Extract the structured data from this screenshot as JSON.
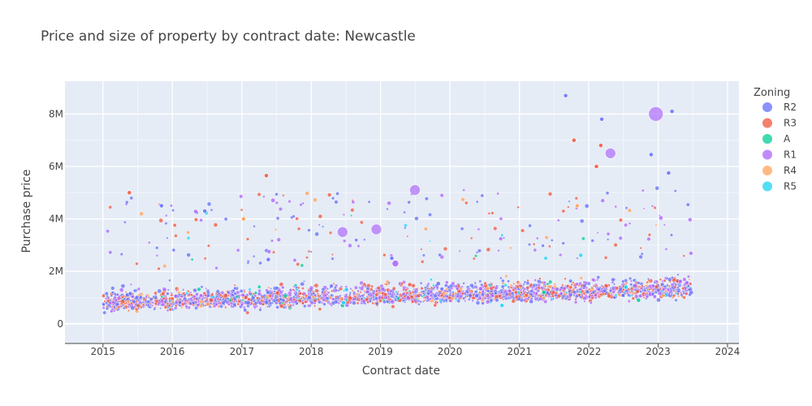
{
  "chart_data": {
    "type": "scatter",
    "title": "Price and size of property by contract date: Newcastle",
    "xlabel": "Contract date",
    "ylabel": "Purchase price",
    "x_range": [
      "2014-06-15",
      "2024-03-01"
    ],
    "x_ticks": [
      "2015",
      "2016",
      "2017",
      "2018",
      "2019",
      "2020",
      "2021",
      "2022",
      "2023",
      "2024"
    ],
    "ylim": [
      -750000,
      9250000
    ],
    "y_ticks": [
      {
        "value": 0,
        "label": "0"
      },
      {
        "value": 2000000,
        "label": "2M"
      },
      {
        "value": 4000000,
        "label": "4M"
      },
      {
        "value": 6000000,
        "label": "6M"
      },
      {
        "value": 8000000,
        "label": "8M"
      }
    ],
    "grid": true,
    "background": "#E5ECF6",
    "legend": {
      "title": "Zoning",
      "placement": "right",
      "entries": [
        {
          "name": "R2",
          "color": "#636EFA"
        },
        {
          "name": "R3",
          "color": "#EF553B"
        },
        {
          "name": "A",
          "color": "#00CC96"
        },
        {
          "name": "R1",
          "color": "#AB63FA"
        },
        {
          "name": "R4",
          "color": "#FFA15A"
        },
        {
          "name": "R5",
          "color": "#19D3F3"
        }
      ]
    },
    "series": [
      {
        "name": "R2",
        "color": "#636EFA",
        "points": [
          {
            "x": "2015-05-10",
            "y": 1100000
          },
          {
            "x": "2015-05-25",
            "y": 1150000
          },
          {
            "x": "2015-11-05",
            "y": 4500000
          },
          {
            "x": "2016-06-20",
            "y": 4300000
          },
          {
            "x": "2017-05-20",
            "y": 2450000
          },
          {
            "x": "2019-03-01",
            "y": 2500000
          },
          {
            "x": "2021-09-01",
            "y": 8700000
          },
          {
            "x": "2022-03-10",
            "y": 7800000
          },
          {
            "x": "2022-11-25",
            "y": 6450000
          },
          {
            "x": "2023-02-25",
            "y": 5750000
          },
          {
            "x": "2023-03-15",
            "y": 8100000
          }
        ]
      },
      {
        "name": "R3",
        "color": "#EF553B",
        "points": [
          {
            "x": "2015-05-20",
            "y": 5000000
          },
          {
            "x": "2017-05-10",
            "y": 5650000
          },
          {
            "x": "2021-10-15",
            "y": 7000000
          },
          {
            "x": "2022-02-10",
            "y": 6000000
          },
          {
            "x": "2022-03-05",
            "y": 6800000
          }
        ]
      },
      {
        "name": "A",
        "color": "#00CC96",
        "points": [
          {
            "x": "2018-06-15",
            "y": 700000
          },
          {
            "x": "2021-05-10",
            "y": 1200000
          },
          {
            "x": "2022-09-20",
            "y": 900000
          }
        ]
      },
      {
        "name": "R1",
        "color": "#AB63FA",
        "points": [
          {
            "x": "2018-06-15",
            "y": 3500000
          },
          {
            "x": "2018-12-10",
            "y": 3600000
          },
          {
            "x": "2019-03-20",
            "y": 2300000
          },
          {
            "x": "2019-07-01",
            "y": 5100000
          },
          {
            "x": "2022-04-25",
            "y": 6500000
          },
          {
            "x": "2022-12-20",
            "y": 8000000
          }
        ]
      },
      {
        "name": "R4",
        "color": "#FFA15A",
        "points": [
          {
            "x": "2017-01-10",
            "y": 4000000
          },
          {
            "x": "2021-11-01",
            "y": 4500000
          }
        ]
      },
      {
        "name": "R5",
        "color": "#19D3F3",
        "points": [
          {
            "x": "2018-06-20",
            "y": 800000
          },
          {
            "x": "2020-10-01",
            "y": 700000
          },
          {
            "x": "2022-07-15",
            "y": 1400000
          }
        ]
      }
    ]
  }
}
